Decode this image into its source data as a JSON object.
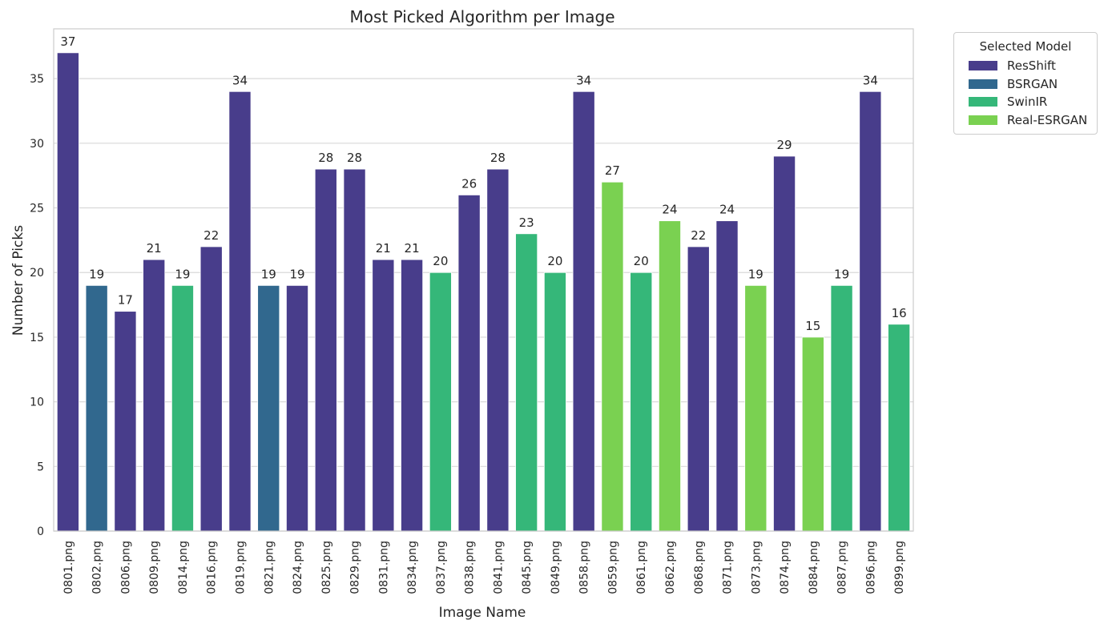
{
  "chart_data": {
    "type": "bar",
    "title": "Most Picked Algorithm per Image",
    "xlabel": "Image Name",
    "ylabel": "Number of Picks",
    "ylim": [
      0,
      38.85
    ],
    "yticks": [
      0,
      5,
      10,
      15,
      20,
      25,
      30,
      35
    ],
    "grid": "horizontal",
    "legend": {
      "title": "Selected Model",
      "placement": "outside-top-right",
      "entries": [
        {
          "name": "ResShift",
          "color": "#483d8b"
        },
        {
          "name": "BSRGAN",
          "color": "#31688e"
        },
        {
          "name": "SwinIR",
          "color": "#35b779"
        },
        {
          "name": "Real-ESRGAN",
          "color": "#7ad151"
        }
      ]
    },
    "categories": [
      "0801.png",
      "0802.png",
      "0806.png",
      "0809.png",
      "0814.png",
      "0816.png",
      "0819.png",
      "0821.png",
      "0824.png",
      "0825.png",
      "0829.png",
      "0831.png",
      "0834.png",
      "0837.png",
      "0838.png",
      "0841.png",
      "0845.png",
      "0849.png",
      "0858.png",
      "0859.png",
      "0861.png",
      "0862.png",
      "0868.png",
      "0871.png",
      "0873.png",
      "0874.png",
      "0884.png",
      "0887.png",
      "0896.png",
      "0899.png"
    ],
    "values": [
      37,
      19,
      17,
      21,
      19,
      22,
      34,
      19,
      19,
      28,
      28,
      21,
      21,
      20,
      26,
      28,
      23,
      20,
      34,
      27,
      20,
      24,
      22,
      24,
      19,
      29,
      15,
      19,
      34,
      16
    ],
    "models": [
      "ResShift",
      "BSRGAN",
      "ResShift",
      "ResShift",
      "SwinIR",
      "ResShift",
      "ResShift",
      "BSRGAN",
      "ResShift",
      "ResShift",
      "ResShift",
      "ResShift",
      "ResShift",
      "SwinIR",
      "ResShift",
      "ResShift",
      "SwinIR",
      "SwinIR",
      "ResShift",
      "Real-ESRGAN",
      "SwinIR",
      "Real-ESRGAN",
      "ResShift",
      "ResShift",
      "Real-ESRGAN",
      "ResShift",
      "Real-ESRGAN",
      "SwinIR",
      "ResShift",
      "SwinIR"
    ],
    "data_labels": [
      "37",
      "19",
      "17",
      "21",
      "19",
      "22",
      "34",
      "19",
      "19",
      "28",
      "28",
      "21",
      "21",
      "20",
      "26",
      "28",
      "23",
      "20",
      "34",
      "27",
      "20",
      "24",
      "22",
      "24",
      "19",
      "29",
      "15",
      "19",
      "34",
      "16"
    ]
  }
}
